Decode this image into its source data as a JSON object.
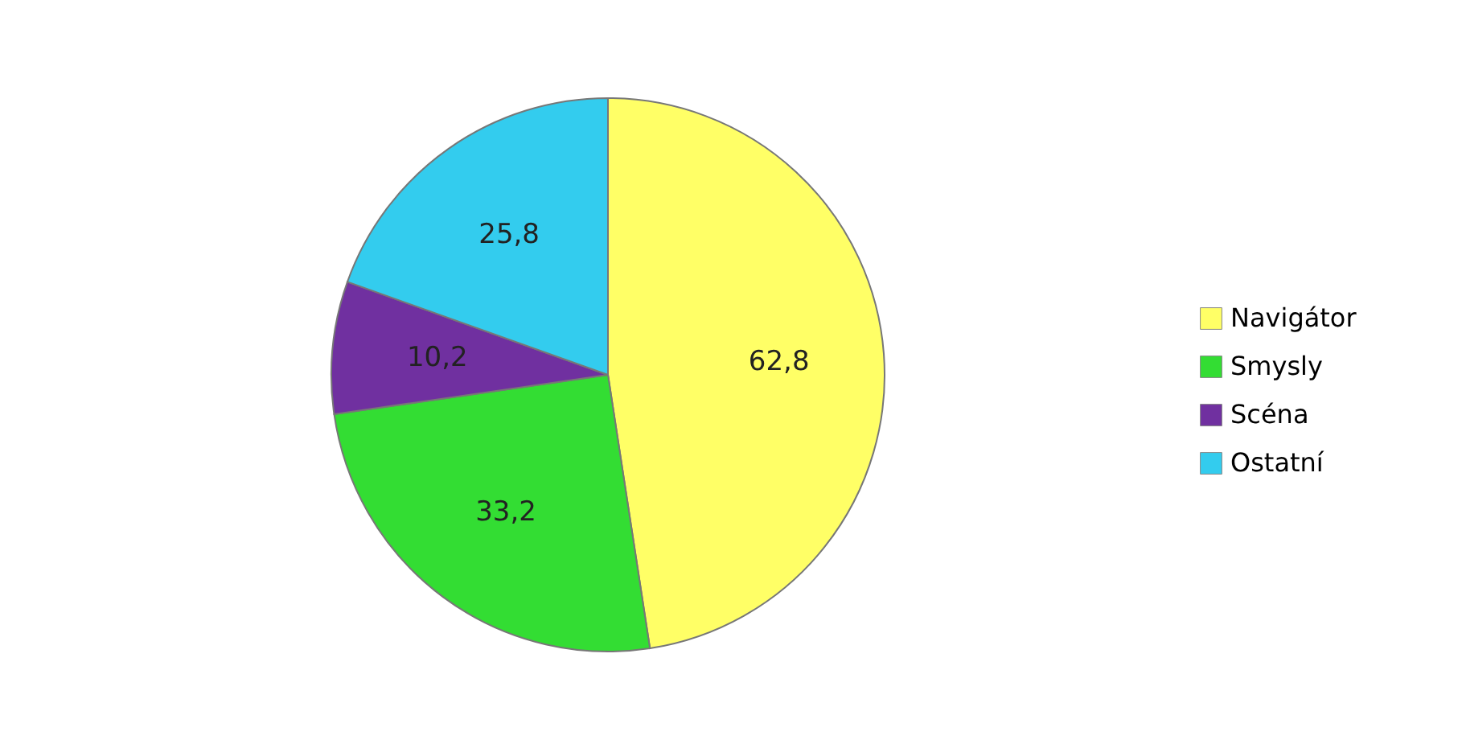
{
  "chart_data": {
    "type": "pie",
    "categories": [
      "Navigátor",
      "Smysly",
      "Scéna",
      "Ostatní"
    ],
    "values": [
      62.8,
      33.2,
      10.2,
      25.8
    ],
    "value_labels": [
      "62,8",
      "33,2",
      "10,2",
      "25,8"
    ],
    "colors": [
      "#ffff66",
      "#33dd33",
      "#7030a0",
      "#33ccee"
    ],
    "legend": "right"
  }
}
